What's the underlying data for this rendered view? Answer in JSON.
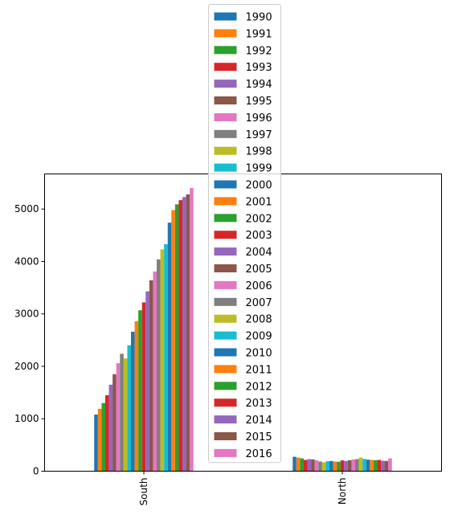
{
  "chart_data": {
    "type": "bar",
    "categories": [
      "South",
      "North"
    ],
    "x": [
      1990,
      1991,
      1992,
      1993,
      1994,
      1995,
      1996,
      1997,
      1998,
      1999,
      2000,
      2001,
      2002,
      2003,
      2004,
      2005,
      2006,
      2007,
      2008,
      2009,
      2010,
      2011,
      2012,
      2013,
      2014,
      2015,
      2016
    ],
    "series": [
      {
        "name": "1990",
        "values": [
          1080,
          275
        ]
      },
      {
        "name": "1991",
        "values": [
          1190,
          260
        ]
      },
      {
        "name": "1992",
        "values": [
          1300,
          245
        ]
      },
      {
        "name": "1993",
        "values": [
          1450,
          215
        ]
      },
      {
        "name": "1994",
        "values": [
          1650,
          230
        ]
      },
      {
        "name": "1995",
        "values": [
          1850,
          225
        ]
      },
      {
        "name": "1996",
        "values": [
          2060,
          210
        ]
      },
      {
        "name": "1997",
        "values": [
          2240,
          185
        ]
      },
      {
        "name": "1998",
        "values": [
          2150,
          170
        ]
      },
      {
        "name": "1999",
        "values": [
          2400,
          190
        ]
      },
      {
        "name": "2000",
        "values": [
          2660,
          195
        ]
      },
      {
        "name": "2001",
        "values": [
          2860,
          185
        ]
      },
      {
        "name": "2002",
        "values": [
          3070,
          180
        ]
      },
      {
        "name": "2003",
        "values": [
          3220,
          205
        ]
      },
      {
        "name": "2004",
        "values": [
          3430,
          195
        ]
      },
      {
        "name": "2005",
        "values": [
          3640,
          210
        ]
      },
      {
        "name": "2006",
        "values": [
          3810,
          225
        ]
      },
      {
        "name": "2007",
        "values": [
          4040,
          230
        ]
      },
      {
        "name": "2008",
        "values": [
          4230,
          260
        ]
      },
      {
        "name": "2009",
        "values": [
          4330,
          235
        ]
      },
      {
        "name": "2010",
        "values": [
          4740,
          220
        ]
      },
      {
        "name": "2011",
        "values": [
          4980,
          215
        ]
      },
      {
        "name": "2012",
        "values": [
          5090,
          210
        ]
      },
      {
        "name": "2013",
        "values": [
          5170,
          215
        ]
      },
      {
        "name": "2014",
        "values": [
          5230,
          200
        ]
      },
      {
        "name": "2015",
        "values": [
          5280,
          195
        ]
      },
      {
        "name": "2016",
        "values": [
          5400,
          245
        ]
      }
    ],
    "colors": [
      "#1f77b4",
      "#ff7f0e",
      "#2ca02c",
      "#d62728",
      "#9467bd",
      "#8c564b",
      "#e377c2",
      "#7f7f7f",
      "#bcbd22",
      "#17becf"
    ],
    "ylim": [
      0,
      5670
    ],
    "yticks": [
      0,
      1000,
      2000,
      3000,
      4000,
      5000
    ],
    "grid": false,
    "legend": "top-center",
    "title": "",
    "xlabel": "",
    "ylabel": ""
  }
}
